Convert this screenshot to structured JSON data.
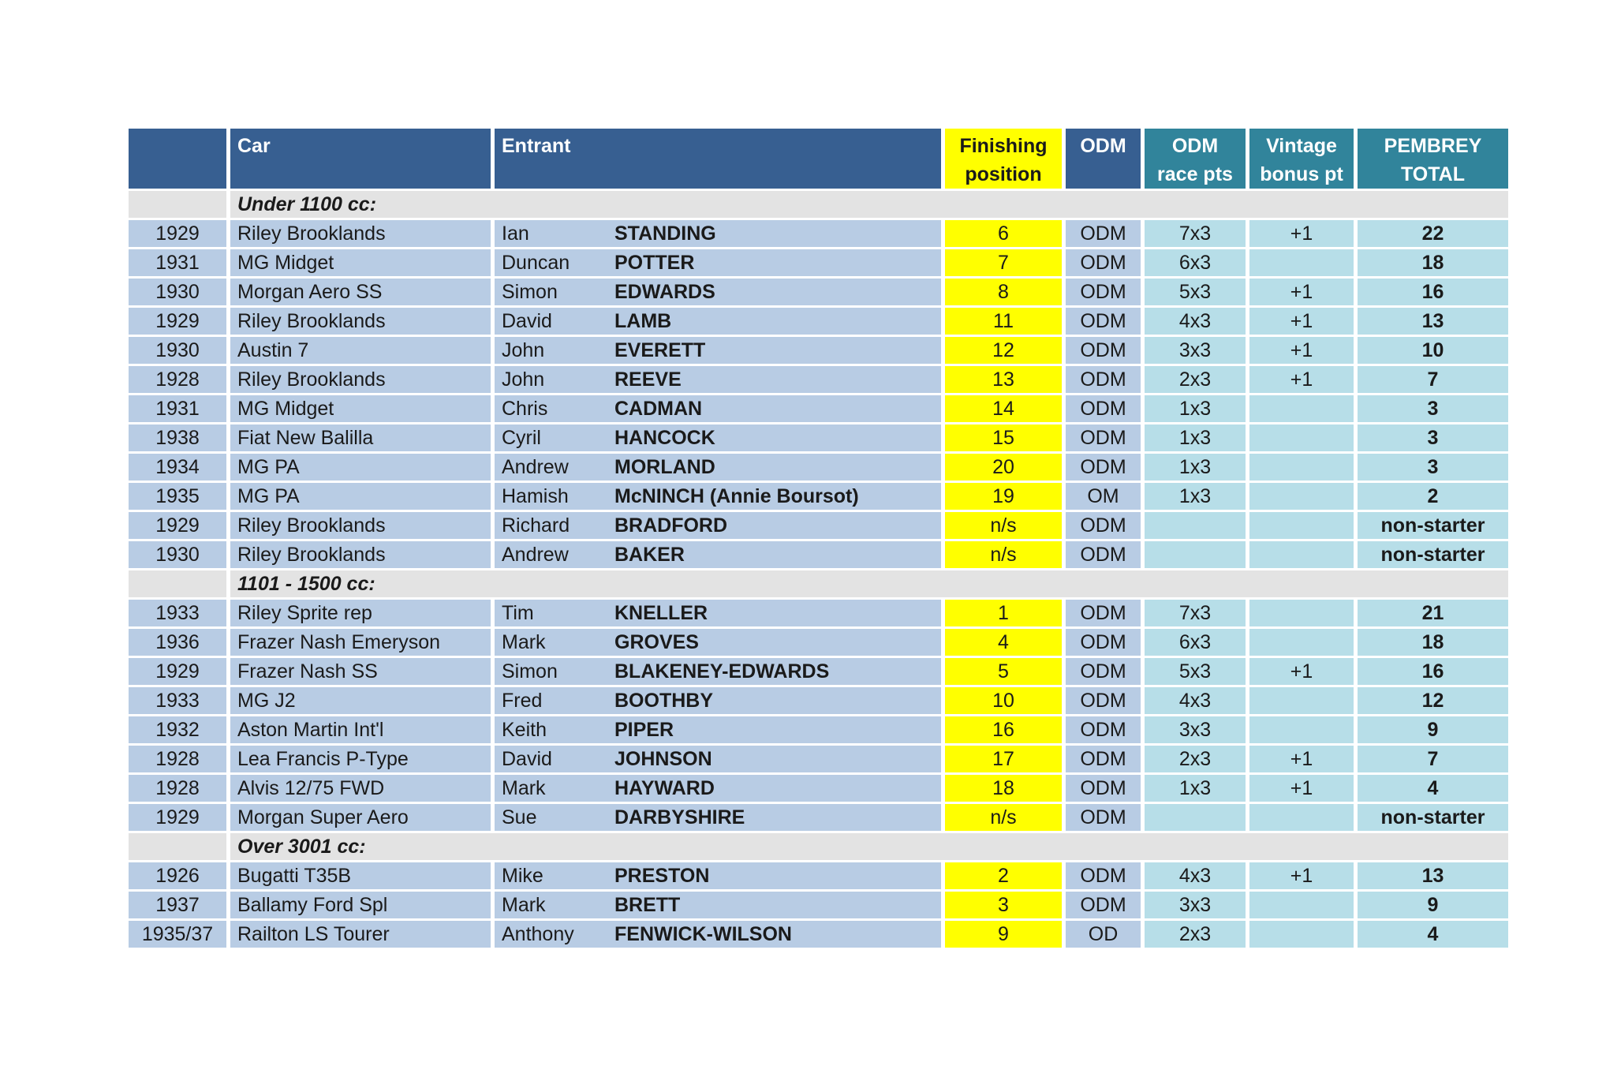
{
  "headers": {
    "car": "Car",
    "entrant": "Entrant",
    "finishing": [
      "Finishing",
      "position"
    ],
    "odm": "ODM",
    "odm_race_pts": [
      "ODM",
      "race pts"
    ],
    "vintage_bonus": [
      "Vintage",
      "bonus pt"
    ],
    "pembrey_total": [
      "PEMBREY",
      "TOTAL"
    ]
  },
  "sections": [
    {
      "title": "Under 1100 cc:",
      "rows": [
        {
          "year": "1929",
          "car": "Riley Brooklands",
          "first": "Ian",
          "surname": "STANDING",
          "pos": "6",
          "odm": "ODM",
          "pts": "7x3",
          "bonus": "+1",
          "total": "22"
        },
        {
          "year": "1931",
          "car": "MG Midget",
          "first": "Duncan",
          "surname": "POTTER",
          "pos": "7",
          "odm": "ODM",
          "pts": "6x3",
          "bonus": "",
          "total": "18"
        },
        {
          "year": "1930",
          "car": "Morgan Aero SS",
          "first": "Simon",
          "surname": "EDWARDS",
          "pos": "8",
          "odm": "ODM",
          "pts": "5x3",
          "bonus": "+1",
          "total": "16"
        },
        {
          "year": "1929",
          "car": "Riley Brooklands",
          "first": "David",
          "surname": "LAMB",
          "pos": "11",
          "odm": "ODM",
          "pts": "4x3",
          "bonus": "+1",
          "total": "13"
        },
        {
          "year": "1930",
          "car": "Austin 7",
          "first": "John",
          "surname": "EVERETT",
          "pos": "12",
          "odm": "ODM",
          "pts": "3x3",
          "bonus": "+1",
          "total": "10"
        },
        {
          "year": "1928",
          "car": "Riley Brooklands",
          "first": "John",
          "surname": "REEVE",
          "pos": "13",
          "odm": "ODM",
          "pts": "2x3",
          "bonus": "+1",
          "total": "7"
        },
        {
          "year": "1931",
          "car": "MG Midget",
          "first": "Chris",
          "surname": "CADMAN",
          "pos": "14",
          "odm": "ODM",
          "pts": "1x3",
          "bonus": "",
          "total": "3"
        },
        {
          "year": "1938",
          "car": "Fiat New Balilla",
          "first": "Cyril",
          "surname": "HANCOCK",
          "pos": "15",
          "odm": "ODM",
          "pts": "1x3",
          "bonus": "",
          "total": "3"
        },
        {
          "year": "1934",
          "car": "MG PA",
          "first": "Andrew",
          "surname": "MORLAND",
          "pos": "20",
          "odm": "ODM",
          "pts": "1x3",
          "bonus": "",
          "total": "3"
        },
        {
          "year": "1935",
          "car": "MG PA",
          "first": "Hamish",
          "surname": "McNINCH (Annie Boursot)",
          "pos": "19",
          "odm": "OM",
          "pts": "1x3",
          "bonus": "",
          "total": "2"
        },
        {
          "year": "1929",
          "car": "Riley Brooklands",
          "first": "Richard",
          "surname": "BRADFORD",
          "pos": "n/s",
          "odm": "ODM",
          "pts": "",
          "bonus": "",
          "total": "non-starter"
        },
        {
          "year": "1930",
          "car": "Riley Brooklands",
          "first": "Andrew",
          "surname": "BAKER",
          "pos": "n/s",
          "odm": "ODM",
          "pts": "",
          "bonus": "",
          "total": "non-starter"
        }
      ]
    },
    {
      "title": "1101 - 1500 cc:",
      "rows": [
        {
          "year": "1933",
          "car": "Riley Sprite rep",
          "first": "Tim",
          "surname": "KNELLER",
          "pos": "1",
          "odm": "ODM",
          "pts": "7x3",
          "bonus": "",
          "total": "21"
        },
        {
          "year": "1936",
          "car": "Frazer Nash Emeryson",
          "first": "Mark",
          "surname": "GROVES",
          "pos": "4",
          "odm": "ODM",
          "pts": "6x3",
          "bonus": "",
          "total": "18"
        },
        {
          "year": "1929",
          "car": "Frazer Nash SS",
          "first": "Simon",
          "surname": "BLAKENEY-EDWARDS",
          "pos": "5",
          "odm": "ODM",
          "pts": "5x3",
          "bonus": "+1",
          "total": "16"
        },
        {
          "year": "1933",
          "car": "MG J2",
          "first": "Fred",
          "surname": "BOOTHBY",
          "pos": "10",
          "odm": "ODM",
          "pts": "4x3",
          "bonus": "",
          "total": "12"
        },
        {
          "year": "1932",
          "car": "Aston Martin Int'l",
          "first": "Keith",
          "surname": "PIPER",
          "pos": "16",
          "odm": "ODM",
          "pts": "3x3",
          "bonus": "",
          "total": "9"
        },
        {
          "year": "1928",
          "car": "Lea Francis P-Type",
          "first": "David",
          "surname": "JOHNSON",
          "pos": "17",
          "odm": "ODM",
          "pts": "2x3",
          "bonus": "+1",
          "total": "7"
        },
        {
          "year": "1928",
          "car": "Alvis 12/75 FWD",
          "first": "Mark",
          "surname": "HAYWARD",
          "pos": "18",
          "odm": "ODM",
          "pts": "1x3",
          "bonus": "+1",
          "total": "4"
        },
        {
          "year": "1929",
          "car": "Morgan Super Aero",
          "first": "Sue",
          "surname": "DARBYSHIRE",
          "pos": "n/s",
          "odm": "ODM",
          "pts": "",
          "bonus": "",
          "total": "non-starter"
        }
      ]
    },
    {
      "title": "Over 3001 cc:",
      "rows": [
        {
          "year": "1926",
          "car": "Bugatti T35B",
          "first": "Mike",
          "surname": "PRESTON",
          "pos": "2",
          "odm": "ODM",
          "pts": "4x3",
          "bonus": "+1",
          "total": "13"
        },
        {
          "year": "1937",
          "car": "Ballamy Ford Spl",
          "first": "Mark",
          "surname": "BRETT",
          "pos": "3",
          "odm": "ODM",
          "pts": "3x3",
          "bonus": "",
          "total": "9"
        },
        {
          "year": "1935/37",
          "car": "Railton LS Tourer",
          "first": "Anthony",
          "surname": "FENWICK-WILSON",
          "pos": "9",
          "odm": "OD",
          "pts": "2x3",
          "bonus": "",
          "total": "4"
        }
      ]
    }
  ]
}
